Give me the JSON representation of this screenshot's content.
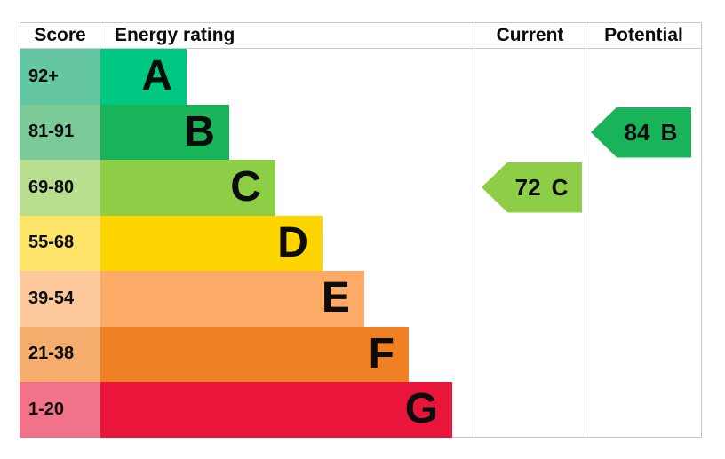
{
  "header": {
    "score": "Score",
    "energy_rating": "Energy rating",
    "current": "Current",
    "potential": "Potential"
  },
  "colors": {
    "border": "#c9c9c9",
    "text": "#0b0c0c"
  },
  "bands": [
    {
      "range": "92+",
      "letter": "A",
      "bar_color": "#00c781",
      "score_color": "#65c6a2",
      "bar_width": "23.1%"
    },
    {
      "range": "81-91",
      "letter": "B",
      "bar_color": "#19b459",
      "score_color": "#7cc998",
      "bar_width": "34.5%"
    },
    {
      "range": "69-80",
      "letter": "C",
      "bar_color": "#8dce46",
      "score_color": "#b8de90",
      "bar_width": "46.9%"
    },
    {
      "range": "55-68",
      "letter": "D",
      "bar_color": "#ffd500",
      "score_color": "#ffe46a",
      "bar_width": "59.5%"
    },
    {
      "range": "39-54",
      "letter": "E",
      "bar_color": "#fcaa65",
      "score_color": "#fdc99c",
      "bar_width": "70.7%"
    },
    {
      "range": "21-38",
      "letter": "F",
      "bar_color": "#ef8023",
      "score_color": "#f4ad6c",
      "bar_width": "82.6%"
    },
    {
      "range": "1-20",
      "letter": "G",
      "bar_color": "#e9153b",
      "score_color": "#f0738a",
      "bar_width": "94.3%"
    }
  ],
  "current": {
    "value": "72",
    "letter": "C",
    "color": "#8dce46"
  },
  "potential": {
    "value": "84",
    "letter": "B",
    "color": "#19b459"
  },
  "chart_data": {
    "type": "bar",
    "title": "EPC energy efficiency rating",
    "categories": [
      "A",
      "B",
      "C",
      "D",
      "E",
      "F",
      "G"
    ],
    "score_ranges": [
      "92+",
      "81-91",
      "69-80",
      "55-68",
      "39-54",
      "21-38",
      "1-20"
    ],
    "bar_lengths_pct_of_column": [
      23.1,
      34.5,
      46.9,
      59.5,
      70.7,
      82.6,
      94.3
    ],
    "band_colors": [
      "#00c781",
      "#19b459",
      "#8dce46",
      "#ffd500",
      "#fcaa65",
      "#ef8023",
      "#e9153b"
    ],
    "current": {
      "score": 72,
      "band": "C"
    },
    "potential": {
      "score": 84,
      "band": "B"
    },
    "legend_position": "none",
    "grid": false
  }
}
